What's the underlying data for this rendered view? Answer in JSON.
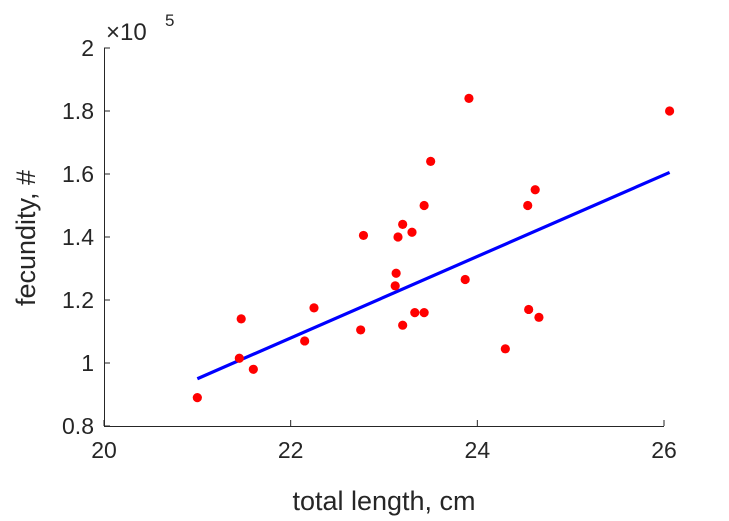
{
  "chart_data": {
    "type": "scatter",
    "title": "",
    "xlabel": "total length, cm",
    "ylabel": "fecundity, #",
    "xlim": [
      20,
      26
    ],
    "ylim": [
      80000,
      200000
    ],
    "x_ticks": [
      20,
      22,
      24,
      26
    ],
    "x_tick_labels": [
      "20",
      "22",
      "24",
      "26"
    ],
    "y_ticks": [
      80000,
      100000,
      120000,
      140000,
      160000,
      180000,
      200000
    ],
    "y_tick_labels": [
      "0.8",
      "1",
      "1.2",
      "1.4",
      "1.6",
      "1.8",
      "2"
    ],
    "y_exponent_base": "×10",
    "y_exponent_power": "5",
    "grid": false,
    "series": [
      {
        "type": "scatter",
        "color": "#ff0000",
        "points": [
          {
            "x": 21.0,
            "y": 89000
          },
          {
            "x": 21.45,
            "y": 101500
          },
          {
            "x": 21.47,
            "y": 114000
          },
          {
            "x": 21.6,
            "y": 98000
          },
          {
            "x": 22.15,
            "y": 107000
          },
          {
            "x": 22.25,
            "y": 117500
          },
          {
            "x": 22.75,
            "y": 110500
          },
          {
            "x": 22.78,
            "y": 140500
          },
          {
            "x": 23.12,
            "y": 124500
          },
          {
            "x": 23.13,
            "y": 128500
          },
          {
            "x": 23.15,
            "y": 140000
          },
          {
            "x": 23.2,
            "y": 112000
          },
          {
            "x": 23.2,
            "y": 144000
          },
          {
            "x": 23.3,
            "y": 141500
          },
          {
            "x": 23.33,
            "y": 116000
          },
          {
            "x": 23.43,
            "y": 116000
          },
          {
            "x": 23.43,
            "y": 150000
          },
          {
            "x": 23.5,
            "y": 164000
          },
          {
            "x": 23.87,
            "y": 126500
          },
          {
            "x": 23.91,
            "y": 184000
          },
          {
            "x": 24.3,
            "y": 104500
          },
          {
            "x": 24.54,
            "y": 150000
          },
          {
            "x": 24.55,
            "y": 117000
          },
          {
            "x": 24.62,
            "y": 155000
          },
          {
            "x": 24.66,
            "y": 114500
          },
          {
            "x": 26.06,
            "y": 180000
          }
        ]
      },
      {
        "type": "line",
        "color": "#0000ff",
        "points": [
          {
            "x": 21.0,
            "y": 95000
          },
          {
            "x": 26.06,
            "y": 160500
          }
        ]
      }
    ]
  }
}
